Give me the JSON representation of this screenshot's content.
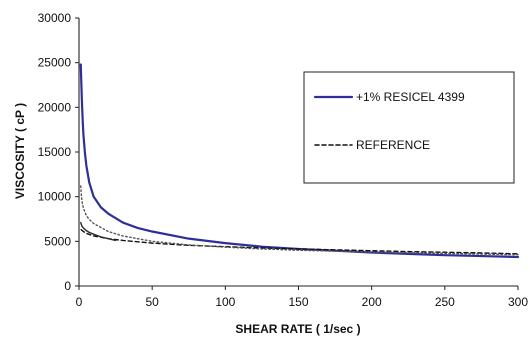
{
  "chart_data": {
    "type": "line",
    "xlabel": "SHEAR RATE ( 1/sec )",
    "ylabel": "VISCOSITY ( cP )",
    "xlim": [
      0,
      300
    ],
    "ylim": [
      0,
      30000
    ],
    "x_ticks": [
      0,
      50,
      100,
      150,
      200,
      250,
      300
    ],
    "y_ticks": [
      0,
      5000,
      10000,
      15000,
      20000,
      25000,
      30000
    ],
    "x_tick_labels": [
      "0",
      "50",
      "100",
      "150",
      "200",
      "250",
      "300"
    ],
    "y_tick_labels": [
      "0",
      "5000",
      "10000",
      "15000",
      "20000",
      "25000",
      "30000"
    ],
    "grid": false,
    "legend_position": "right",
    "series": [
      {
        "name": "+1% RESICEL 4399",
        "color": "#2f2f9a",
        "style": "solid",
        "points": [
          [
            1.2,
            24800
          ],
          [
            1.5,
            23200
          ],
          [
            2,
            20600
          ],
          [
            2.5,
            18600
          ],
          [
            3,
            17000
          ],
          [
            4,
            15000
          ],
          [
            5,
            13500
          ],
          [
            7,
            11600
          ],
          [
            10,
            10000
          ],
          [
            15,
            8800
          ],
          [
            20,
            8100
          ],
          [
            30,
            7100
          ],
          [
            40,
            6500
          ],
          [
            50,
            6100
          ],
          [
            75,
            5300
          ],
          [
            100,
            4800
          ],
          [
            125,
            4400
          ],
          [
            150,
            4150
          ],
          [
            175,
            3950
          ],
          [
            200,
            3750
          ],
          [
            225,
            3600
          ],
          [
            250,
            3450
          ],
          [
            275,
            3350
          ],
          [
            300,
            3250
          ]
        ]
      },
      {
        "name": "REFERENCE",
        "color": "#111111",
        "style": "dashed",
        "points": [
          [
            1.5,
            6300
          ],
          [
            3,
            6100
          ],
          [
            5,
            5900
          ],
          [
            10,
            5600
          ],
          [
            20,
            5300
          ],
          [
            30,
            5100
          ],
          [
            50,
            4800
          ],
          [
            75,
            4550
          ],
          [
            100,
            4400
          ],
          [
            125,
            4250
          ],
          [
            150,
            4150
          ],
          [
            175,
            4050
          ],
          [
            200,
            3950
          ],
          [
            225,
            3850
          ],
          [
            250,
            3780
          ],
          [
            275,
            3700
          ],
          [
            300,
            3600
          ]
        ]
      },
      {
        "name": "",
        "color": "#555555",
        "style": "dotted",
        "points": [
          [
            1.2,
            11200
          ],
          [
            1.5,
            10400
          ],
          [
            2,
            9500
          ],
          [
            3,
            8700
          ],
          [
            5,
            7900
          ],
          [
            7,
            7450
          ],
          [
            10,
            7000
          ],
          [
            20,
            6100
          ],
          [
            30,
            5600
          ],
          [
            50,
            5000
          ],
          [
            75,
            4600
          ],
          [
            100,
            4350
          ],
          [
            125,
            4150
          ],
          [
            150,
            4000
          ],
          [
            200,
            3800
          ],
          [
            250,
            3650
          ],
          [
            300,
            3500
          ]
        ]
      },
      {
        "name": "",
        "color": "#2b2b2b",
        "style": "solid",
        "points": [
          [
            1.2,
            7100
          ],
          [
            2,
            6700
          ],
          [
            3,
            6500
          ],
          [
            5,
            6200
          ],
          [
            7,
            6000
          ],
          [
            10,
            5800
          ],
          [
            15,
            5500
          ],
          [
            20,
            5300
          ],
          [
            25,
            5100
          ]
        ]
      }
    ]
  },
  "legend": {
    "items": [
      {
        "label": "+1% RESICEL 4399",
        "color": "#2f2f9a",
        "style": "solid"
      },
      {
        "label": "REFERENCE",
        "color": "#111111",
        "style": "dashed"
      }
    ]
  }
}
